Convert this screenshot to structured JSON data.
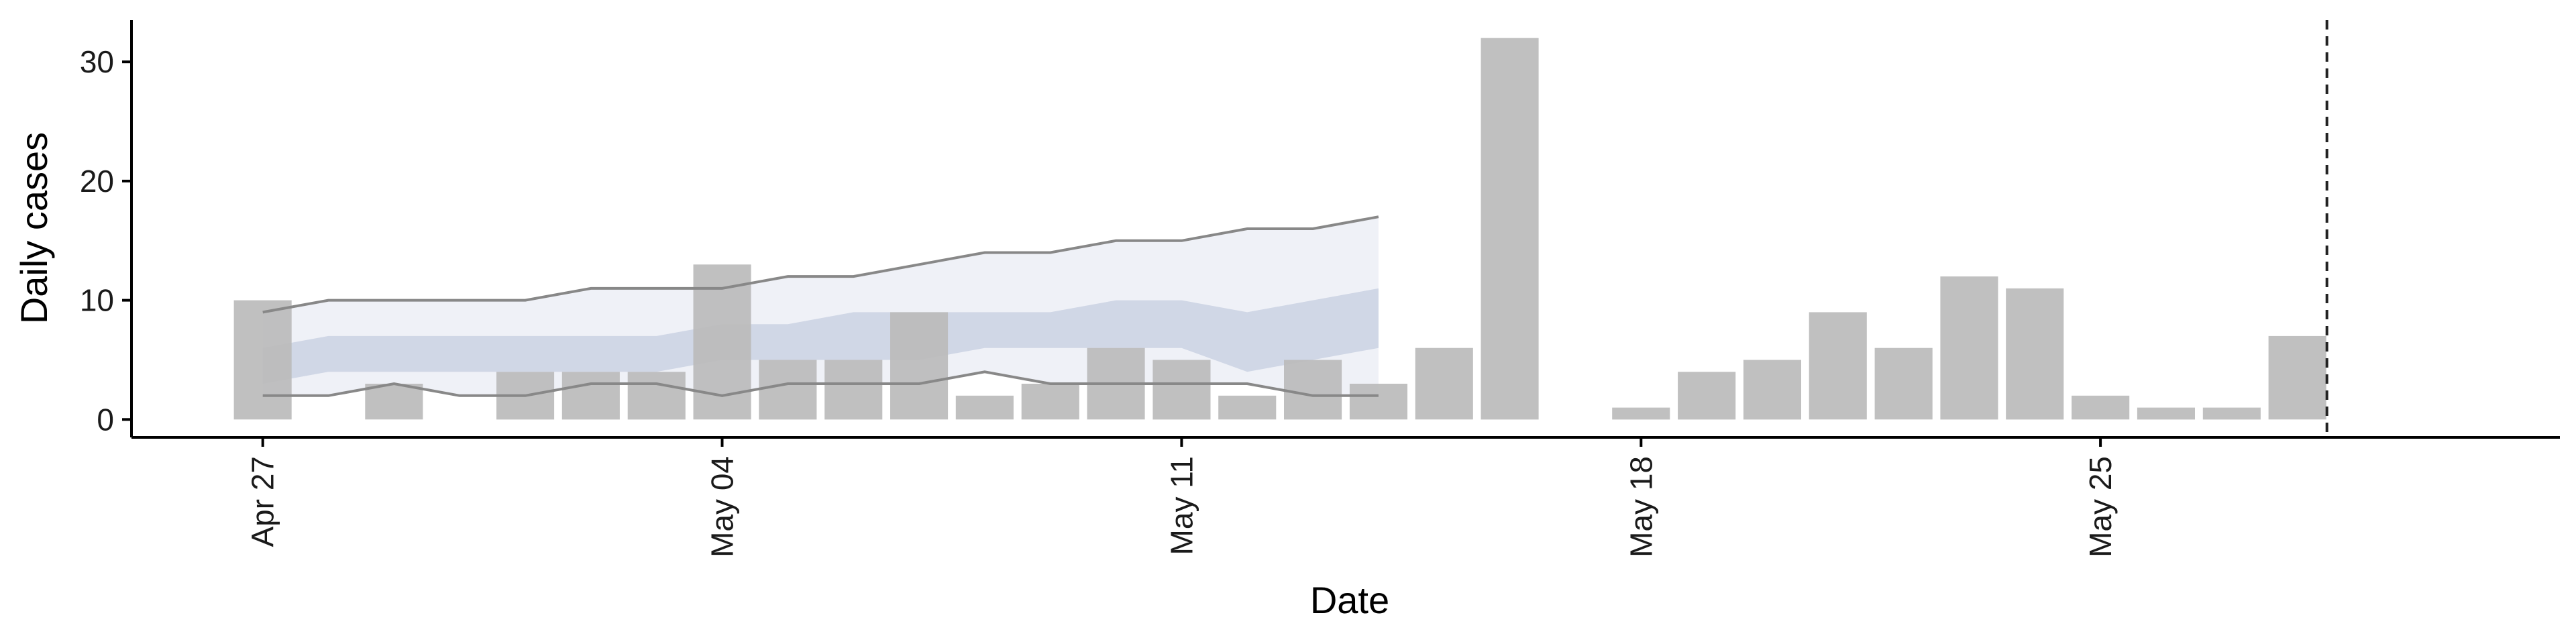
{
  "chart_data": {
    "type": "bar",
    "title": "",
    "xlabel": "Date",
    "ylabel": "Daily cases",
    "x_tick_labels": [
      {
        "date": "2020-04-27",
        "label": "Apr 27"
      },
      {
        "date": "2020-05-04",
        "label": "May 04"
      },
      {
        "date": "2020-05-11",
        "label": "May 11"
      },
      {
        "date": "2020-05-18",
        "label": "May 18"
      },
      {
        "date": "2020-05-25",
        "label": "May 25"
      }
    ],
    "y_ticks": [
      0,
      10,
      20,
      30
    ],
    "xlim": [
      "2020-04-25",
      "2020-06-01"
    ],
    "ylim": [
      -1.5,
      33.5
    ],
    "grid": false,
    "bars": {
      "color": "#bbbbbb",
      "points": [
        {
          "date": "2020-04-27",
          "value": 10
        },
        {
          "date": "2020-04-29",
          "value": 3
        },
        {
          "date": "2020-05-01",
          "value": 4
        },
        {
          "date": "2020-05-02",
          "value": 4
        },
        {
          "date": "2020-05-03",
          "value": 4
        },
        {
          "date": "2020-05-04",
          "value": 13
        },
        {
          "date": "2020-05-05",
          "value": 5
        },
        {
          "date": "2020-05-06",
          "value": 5
        },
        {
          "date": "2020-05-07",
          "value": 9
        },
        {
          "date": "2020-05-08",
          "value": 2
        },
        {
          "date": "2020-05-09",
          "value": 3
        },
        {
          "date": "2020-05-10",
          "value": 6
        },
        {
          "date": "2020-05-11",
          "value": 5
        },
        {
          "date": "2020-05-12",
          "value": 2
        },
        {
          "date": "2020-05-13",
          "value": 5
        },
        {
          "date": "2020-05-14",
          "value": 3
        },
        {
          "date": "2020-05-15",
          "value": 6
        },
        {
          "date": "2020-05-16",
          "value": 32
        },
        {
          "date": "2020-05-18",
          "value": 1
        },
        {
          "date": "2020-05-19",
          "value": 4
        },
        {
          "date": "2020-05-20",
          "value": 5
        },
        {
          "date": "2020-05-21",
          "value": 9
        },
        {
          "date": "2020-05-22",
          "value": 6
        },
        {
          "date": "2020-05-23",
          "value": 12
        },
        {
          "date": "2020-05-24",
          "value": 11
        },
        {
          "date": "2020-05-25",
          "value": 2
        },
        {
          "date": "2020-05-26",
          "value": 1
        },
        {
          "date": "2020-05-27",
          "value": 1
        },
        {
          "date": "2020-05-28",
          "value": 7
        }
      ]
    },
    "forecast": {
      "inner_band_color": "#c5cde0",
      "outer_band_color": "#e6e9f2",
      "line_color": "#888888",
      "points": [
        {
          "date": "2020-04-27",
          "inner_low": 3,
          "inner_high": 6,
          "outer_low": 2,
          "outer_high": 9
        },
        {
          "date": "2020-04-28",
          "inner_low": 4,
          "inner_high": 7,
          "outer_low": 2,
          "outer_high": 10
        },
        {
          "date": "2020-04-29",
          "inner_low": 4,
          "inner_high": 7,
          "outer_low": 3,
          "outer_high": 10
        },
        {
          "date": "2020-04-30",
          "inner_low": 4,
          "inner_high": 7,
          "outer_low": 2,
          "outer_high": 10
        },
        {
          "date": "2020-05-01",
          "inner_low": 4,
          "inner_high": 7,
          "outer_low": 2,
          "outer_high": 10
        },
        {
          "date": "2020-05-02",
          "inner_low": 4,
          "inner_high": 7,
          "outer_low": 3,
          "outer_high": 11
        },
        {
          "date": "2020-05-03",
          "inner_low": 4,
          "inner_high": 7,
          "outer_low": 3,
          "outer_high": 11
        },
        {
          "date": "2020-05-04",
          "inner_low": 5,
          "inner_high": 8,
          "outer_low": 2,
          "outer_high": 11
        },
        {
          "date": "2020-05-05",
          "inner_low": 5,
          "inner_high": 8,
          "outer_low": 3,
          "outer_high": 12
        },
        {
          "date": "2020-05-06",
          "inner_low": 5,
          "inner_high": 9,
          "outer_low": 3,
          "outer_high": 12
        },
        {
          "date": "2020-05-07",
          "inner_low": 5,
          "inner_high": 9,
          "outer_low": 3,
          "outer_high": 13
        },
        {
          "date": "2020-05-08",
          "inner_low": 6,
          "inner_high": 9,
          "outer_low": 4,
          "outer_high": 14
        },
        {
          "date": "2020-05-09",
          "inner_low": 6,
          "inner_high": 9,
          "outer_low": 3,
          "outer_high": 14
        },
        {
          "date": "2020-05-10",
          "inner_low": 6,
          "inner_high": 10,
          "outer_low": 3,
          "outer_high": 15
        },
        {
          "date": "2020-05-11",
          "inner_low": 6,
          "inner_high": 10,
          "outer_low": 3,
          "outer_high": 15
        },
        {
          "date": "2020-05-12",
          "inner_low": 4,
          "inner_high": 9,
          "outer_low": 3,
          "outer_high": 16
        },
        {
          "date": "2020-05-13",
          "inner_low": 5,
          "inner_high": 10,
          "outer_low": 2,
          "outer_high": 16
        },
        {
          "date": "2020-05-14",
          "inner_low": 6,
          "inner_high": 11,
          "outer_low": 2,
          "outer_high": 17
        }
      ]
    },
    "reference_line": {
      "date": "2020-05-28",
      "offset_days": 0.45,
      "style": "dashed",
      "color": "#222222"
    }
  }
}
